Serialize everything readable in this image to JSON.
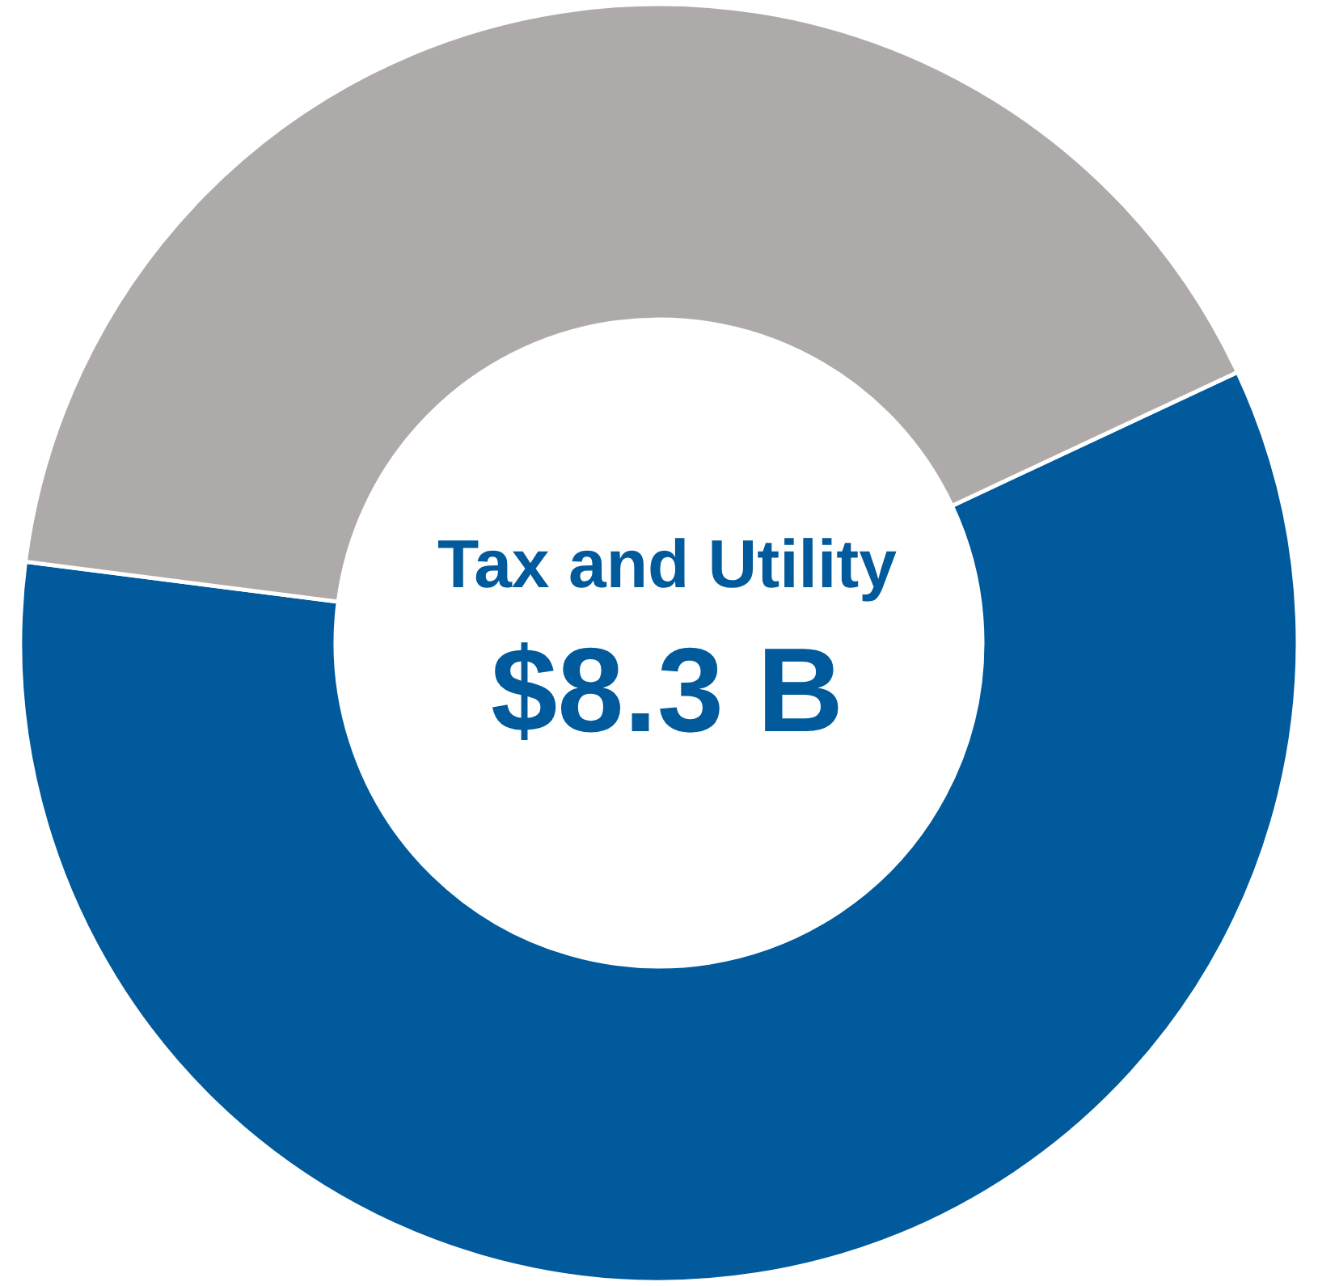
{
  "chart_data": {
    "type": "donut",
    "title": "Tax and Utility",
    "annotations": [
      "$8.3 B"
    ],
    "categories": [
      null,
      null
    ],
    "values": [
      59,
      41
    ],
    "colors": [
      "#005a9c",
      "#adaaa9"
    ]
  }
}
